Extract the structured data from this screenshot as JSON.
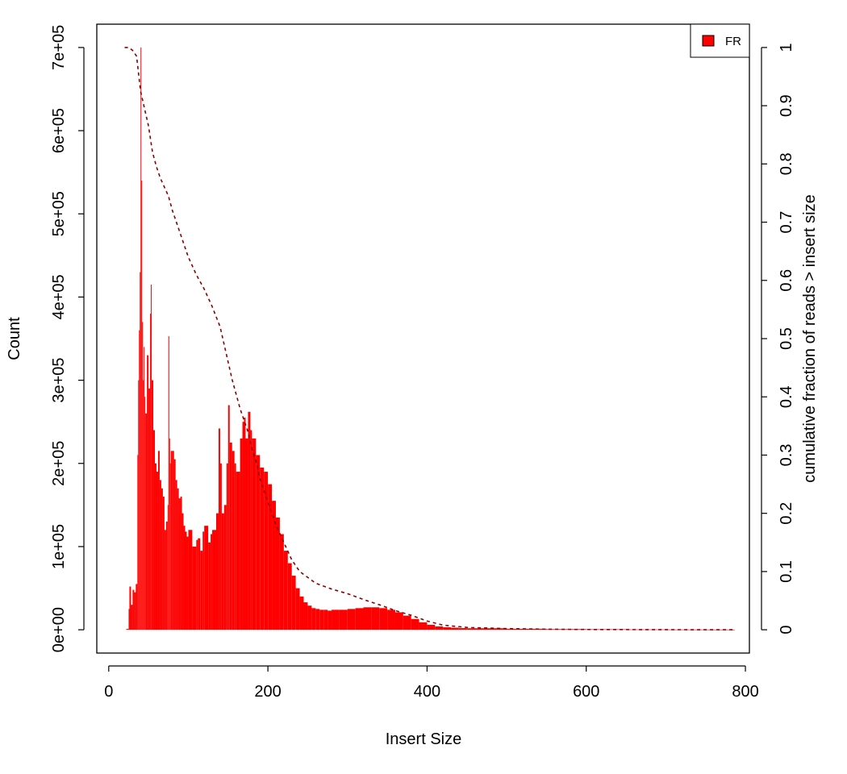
{
  "chart_data": {
    "type": "bar",
    "title": "",
    "xlabel": "Insert Size",
    "ylabel": "Count",
    "ylabel_right": "cumulative fraction of reads > insert size",
    "xlim": [
      -15,
      805
    ],
    "ylim": [
      -28000,
      728000
    ],
    "ylim_right": [
      -0.04,
      1.04
    ],
    "x_ticks": [
      0,
      200,
      400,
      600,
      800
    ],
    "y_ticks": [
      0,
      100000,
      200000,
      300000,
      400000,
      500000,
      600000,
      700000
    ],
    "y_tick_labels": [
      "0e+00",
      "1e+05",
      "2e+05",
      "3e+05",
      "4e+05",
      "5e+05",
      "6e+05",
      "7e+05"
    ],
    "y_right_ticks": [
      0,
      0.1,
      0.2,
      0.3,
      0.4,
      0.5,
      0.6,
      0.7,
      0.8,
      0.9,
      1
    ],
    "y_right_tick_labels": [
      "0",
      "0.1",
      "0.2",
      "0.3",
      "0.4",
      "0.5",
      "0.6",
      "0.7",
      "0.8",
      "0.9",
      "1"
    ],
    "grid": false,
    "legend_position": "top-right",
    "series": [
      {
        "name": "FR",
        "color": "#ff0000",
        "kind": "histogram",
        "x": [
          22,
          25,
          26,
          28,
          30,
          32,
          34,
          36,
          37,
          38,
          39,
          40,
          41,
          42,
          43,
          44,
          45,
          46,
          48,
          50,
          52,
          53,
          54,
          56,
          58,
          60,
          62,
          64,
          66,
          68,
          70,
          72,
          74,
          75,
          76,
          77,
          78,
          80,
          82,
          84,
          86,
          88,
          90,
          92,
          94,
          96,
          98,
          100,
          105,
          110,
          112,
          115,
          118,
          120,
          125,
          128,
          130,
          135,
          138,
          140,
          142,
          145,
          148,
          150,
          152,
          155,
          158,
          160,
          165,
          168,
          170,
          172,
          175,
          178,
          180,
          185,
          190,
          195,
          200,
          205,
          210,
          215,
          220,
          225,
          230,
          235,
          240,
          245,
          250,
          255,
          260,
          265,
          270,
          275,
          280,
          290,
          300,
          310,
          320,
          330,
          340,
          350,
          360,
          370,
          380,
          390,
          400,
          410,
          420,
          430,
          440,
          450,
          500,
          550,
          600,
          650,
          700,
          750,
          785
        ],
        "values": [
          1000,
          25000,
          52000,
          30000,
          48000,
          45000,
          55000,
          210000,
          300000,
          360000,
          430000,
          700000,
          540000,
          370000,
          300000,
          340000,
          280000,
          260000,
          330000,
          290000,
          380000,
          415000,
          300000,
          240000,
          200000,
          190000,
          215000,
          180000,
          170000,
          160000,
          120000,
          130000,
          150000,
          353000,
          230000,
          200000,
          215000,
          215000,
          205000,
          180000,
          170000,
          158000,
          160000,
          140000,
          125000,
          118000,
          112000,
          120000,
          100000,
          108000,
          110000,
          95000,
          118000,
          125000,
          105000,
          115000,
          120000,
          140000,
          242000,
          200000,
          140000,
          150000,
          200000,
          270000,
          225000,
          215000,
          200000,
          190000,
          230000,
          250000,
          255000,
          230000,
          262000,
          240000,
          230000,
          210000,
          195000,
          190000,
          175000,
          155000,
          135000,
          115000,
          95000,
          80000,
          65000,
          50000,
          40000,
          33000,
          29000,
          26000,
          25000,
          24000,
          24000,
          23000,
          24000,
          24000,
          25000,
          26000,
          27000,
          27000,
          26000,
          24000,
          21000,
          17000,
          13000,
          9000,
          6000,
          4000,
          3000,
          2500,
          2000,
          1800,
          1200,
          800,
          600,
          400,
          300,
          200,
          100
        ]
      },
      {
        "name": "cumulative fraction",
        "color": "#8b0000",
        "line_style": "dashed",
        "axis": "right",
        "x": [
          20,
          25,
          30,
          35,
          40,
          45,
          50,
          55,
          60,
          65,
          70,
          75,
          80,
          85,
          90,
          95,
          100,
          110,
          120,
          130,
          140,
          145,
          150,
          155,
          160,
          165,
          170,
          175,
          180,
          185,
          190,
          200,
          210,
          220,
          230,
          240,
          250,
          260,
          270,
          280,
          300,
          320,
          340,
          360,
          380,
          400,
          420,
          450,
          500,
          550,
          600,
          700,
          785
        ],
        "values": [
          1.0,
          1.0,
          0.995,
          0.985,
          0.925,
          0.895,
          0.865,
          0.82,
          0.795,
          0.775,
          0.76,
          0.745,
          0.72,
          0.7,
          0.68,
          0.66,
          0.64,
          0.61,
          0.585,
          0.555,
          0.52,
          0.49,
          0.46,
          0.43,
          0.405,
          0.38,
          0.36,
          0.34,
          0.31,
          0.29,
          0.26,
          0.22,
          0.18,
          0.15,
          0.12,
          0.1,
          0.09,
          0.08,
          0.075,
          0.07,
          0.062,
          0.052,
          0.043,
          0.033,
          0.025,
          0.015,
          0.008,
          0.004,
          0.002,
          0.001,
          0.0005,
          0.0002,
          0.0
        ]
      }
    ]
  }
}
